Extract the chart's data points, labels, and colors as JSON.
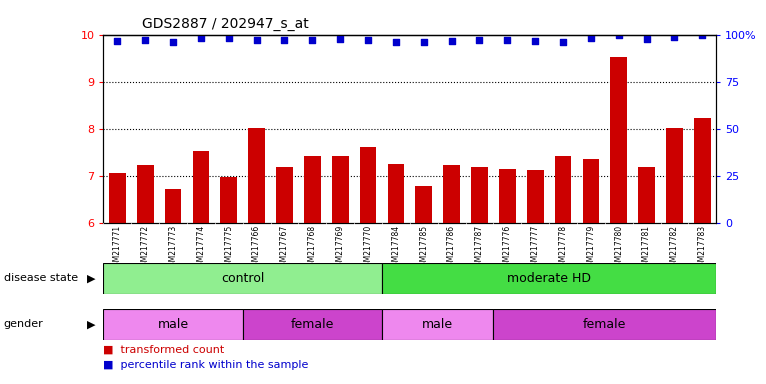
{
  "title": "GDS2887 / 202947_s_at",
  "samples": [
    "GSM217771",
    "GSM217772",
    "GSM217773",
    "GSM217774",
    "GSM217775",
    "GSM217766",
    "GSM217767",
    "GSM217768",
    "GSM217769",
    "GSM217770",
    "GSM217784",
    "GSM217785",
    "GSM217786",
    "GSM217787",
    "GSM217776",
    "GSM217777",
    "GSM217778",
    "GSM217779",
    "GSM217780",
    "GSM217781",
    "GSM217782",
    "GSM217783"
  ],
  "bar_values": [
    7.05,
    7.22,
    6.72,
    7.52,
    6.98,
    8.02,
    7.18,
    7.42,
    7.42,
    7.62,
    7.25,
    6.78,
    7.22,
    7.18,
    7.15,
    7.12,
    7.42,
    7.35,
    9.52,
    7.18,
    8.02,
    8.22
  ],
  "percentile_values": [
    96.8,
    97.2,
    96.2,
    98.2,
    98.2,
    97.2,
    97.2,
    97.2,
    97.8,
    97.2,
    96.2,
    96.2,
    96.8,
    97.2,
    97.2,
    96.8,
    96.2,
    98.2,
    99.8,
    97.8,
    98.8,
    99.8
  ],
  "bar_color": "#cc0000",
  "percentile_color": "#0000cc",
  "ylim_left": [
    6,
    10
  ],
  "ylim_right": [
    0,
    100
  ],
  "yticks_left": [
    6,
    7,
    8,
    9,
    10
  ],
  "yticks_right": [
    0,
    25,
    50,
    75,
    100
  ],
  "ytick_labels_right": [
    "0",
    "25",
    "50",
    "75",
    "100%"
  ],
  "dotted_lines": [
    7.0,
    8.0,
    9.0
  ],
  "disease_state_groups": [
    {
      "label": "control",
      "start": 0,
      "end": 10,
      "color": "#90ee90"
    },
    {
      "label": "moderate HD",
      "start": 10,
      "end": 22,
      "color": "#44dd44"
    }
  ],
  "gender_groups": [
    {
      "label": "male",
      "start": 0,
      "end": 5,
      "color": "#ee88ee"
    },
    {
      "label": "female",
      "start": 5,
      "end": 10,
      "color": "#cc44cc"
    },
    {
      "label": "male",
      "start": 10,
      "end": 14,
      "color": "#ee88ee"
    },
    {
      "label": "female",
      "start": 14,
      "end": 22,
      "color": "#cc44cc"
    }
  ],
  "disease_label": "disease state",
  "gender_label": "gender",
  "legend_bar_label": "transformed count",
  "legend_dot_label": "percentile rank within the sample",
  "background_color": "#ffffff",
  "tick_bg_color": "#d3d3d3",
  "plot_bg_color": "#ffffff"
}
